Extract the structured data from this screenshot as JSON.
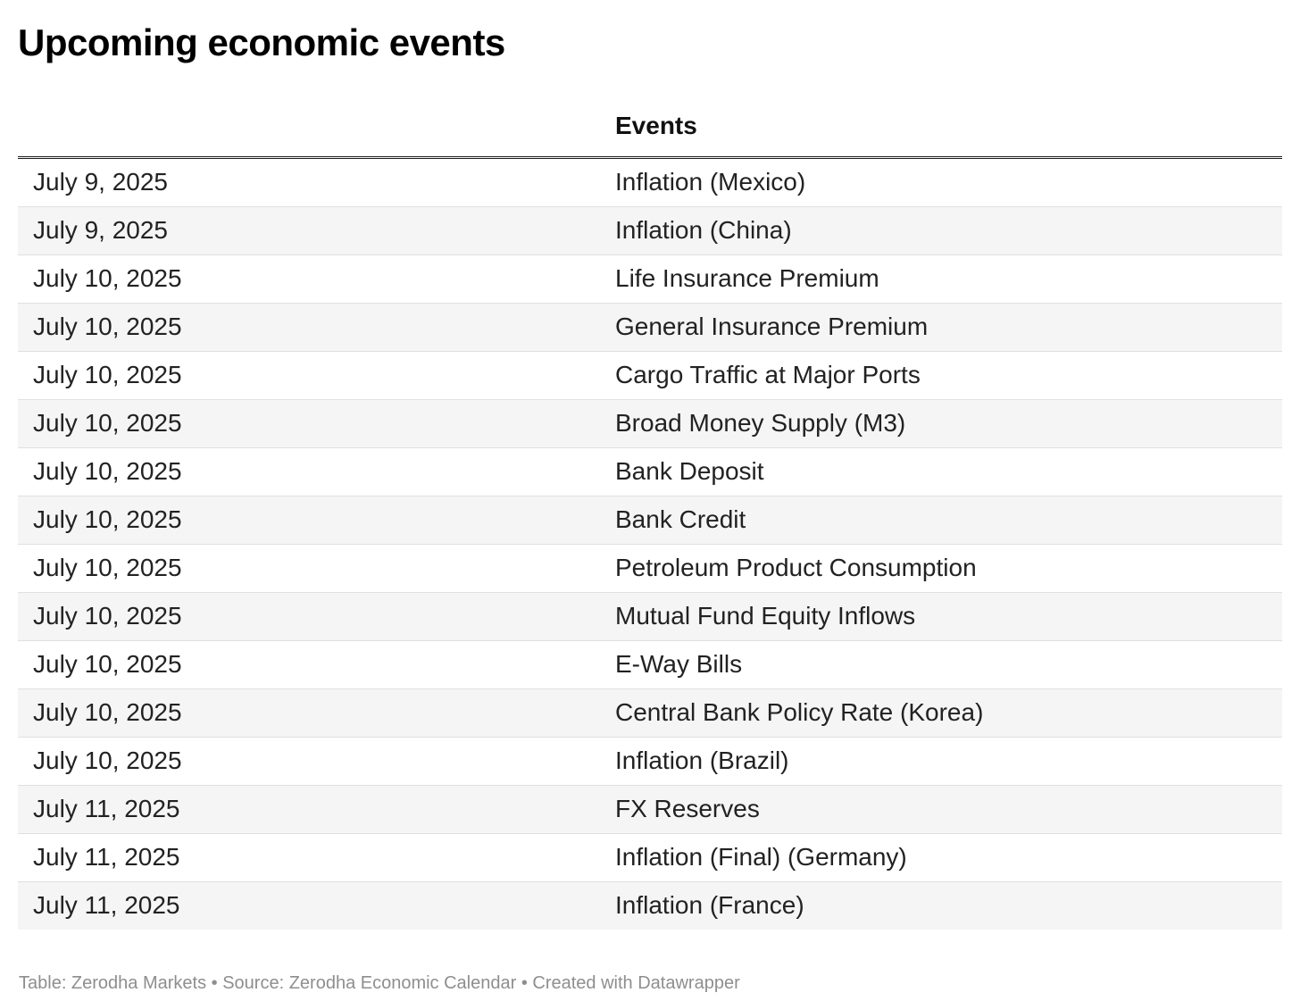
{
  "title": "Upcoming economic events",
  "chart_data": {
    "type": "table",
    "title": "Upcoming economic events",
    "columns": [
      "",
      "Events"
    ],
    "rows": [
      {
        "date": "July 9, 2025",
        "event": "Inflation (Mexico)"
      },
      {
        "date": "July 9, 2025",
        "event": "Inflation (China)"
      },
      {
        "date": "July 10, 2025",
        "event": "Life Insurance Premium"
      },
      {
        "date": "July 10, 2025",
        "event": "General Insurance Premium"
      },
      {
        "date": "July 10, 2025",
        "event": "Cargo Traffic at Major Ports"
      },
      {
        "date": "July 10, 2025",
        "event": "Broad Money Supply (M3)"
      },
      {
        "date": "July 10, 2025",
        "event": "Bank Deposit"
      },
      {
        "date": "July 10, 2025",
        "event": "Bank Credit"
      },
      {
        "date": "July 10, 2025",
        "event": "Petroleum Product Consumption"
      },
      {
        "date": "July 10, 2025",
        "event": "Mutual Fund Equity Inflows"
      },
      {
        "date": "July 10, 2025",
        "event": "E-Way Bills"
      },
      {
        "date": "July 10, 2025",
        "event": "Central Bank Policy Rate (Korea)"
      },
      {
        "date": "July 10, 2025",
        "event": "Inflation (Brazil)"
      },
      {
        "date": "July 11, 2025",
        "event": "FX Reserves"
      },
      {
        "date": "July 11, 2025",
        "event": "Inflation (Final) (Germany)"
      },
      {
        "date": "July 11, 2025",
        "event": "Inflation (France)"
      }
    ],
    "layout": {
      "zebra_striping": true,
      "striped_rows": "even",
      "header_divider": "double-line"
    }
  },
  "footer": "Table: Zerodha Markets • Source: Zerodha Economic Calendar • Created with Datawrapper",
  "colors": {
    "stripe": "#f5f5f5",
    "row-border": "#e0e0e0",
    "header-border": "#1a1a1a",
    "body-text": "#222222",
    "footer-text": "#8e8e8e"
  }
}
